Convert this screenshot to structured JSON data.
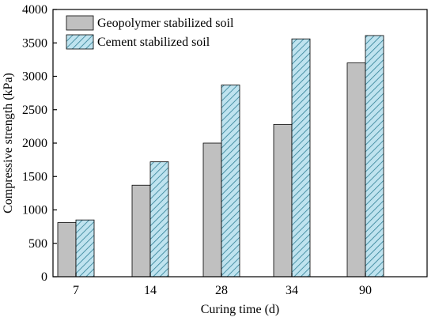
{
  "chart_data": {
    "type": "bar",
    "title": "",
    "xlabel": "Curing time (d)",
    "ylabel": "Compressive strength (kPa)",
    "categories": [
      "7",
      "14",
      "28",
      "34",
      "90"
    ],
    "ylim": [
      0,
      4000
    ],
    "yticks": [
      0,
      500,
      1000,
      1500,
      2000,
      2500,
      3000,
      3500,
      4000
    ],
    "grid": false,
    "legend_position": "top-left",
    "series": [
      {
        "name": "Geopolymer stabilized soil",
        "values": [
          810,
          1370,
          2000,
          2280,
          3200
        ],
        "color": "#c0c0c0",
        "pattern": "solid"
      },
      {
        "name": "Cement stabilized soil",
        "values": [
          850,
          1720,
          2870,
          3560,
          3610
        ],
        "color": "#a8d8e8",
        "pattern": "diagonal-hatch"
      }
    ]
  }
}
